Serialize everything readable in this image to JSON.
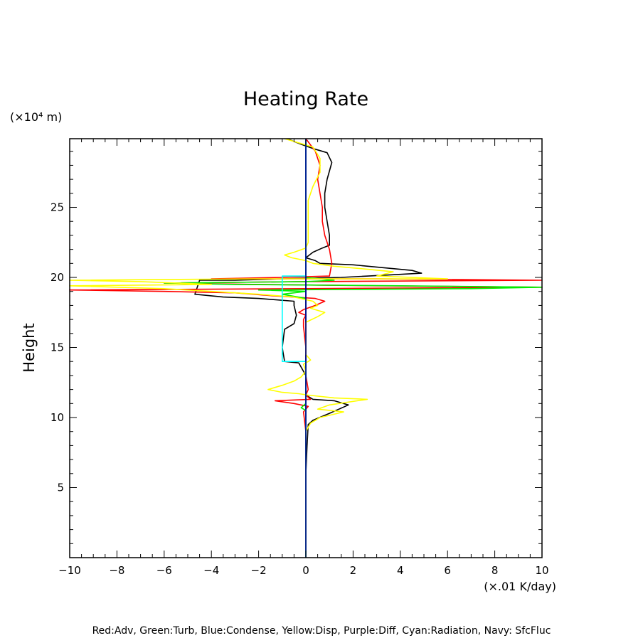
{
  "chart_data": {
    "type": "line",
    "title": "Heating Rate",
    "ylabel": "Height",
    "y_unit": "(×10⁴ m)",
    "x_unit": "(×.01 K/day)",
    "xlim": [
      -10,
      10
    ],
    "ylim": [
      0,
      29.9
    ],
    "x_ticks": [
      -10,
      -8,
      -6,
      -4,
      -2,
      0,
      2,
      4,
      6,
      8,
      10
    ],
    "y_ticks": [
      5,
      10,
      15,
      20,
      25
    ],
    "x_tick_labels": [
      "−10",
      "−8",
      "−6",
      "−4",
      "−2",
      "0",
      "2",
      "4",
      "6",
      "8",
      "10"
    ],
    "y_tick_labels": [
      "5",
      "10",
      "15",
      "20",
      "25"
    ],
    "legend": "Red:Adv, Green:Turb, Blue:Condense, Yellow:Disp, Purple:Diff, Cyan:Radiation, Navy: SfcFluc",
    "legend_position": "bottom",
    "series": [
      {
        "color": "#000000",
        "points": [
          [
            0,
            0
          ],
          [
            0,
            2
          ],
          [
            0,
            4
          ],
          [
            0,
            6
          ],
          [
            0.05,
            8
          ],
          [
            0.1,
            9.5
          ],
          [
            0.3,
            9.8
          ],
          [
            1.0,
            10.3
          ],
          [
            1.8,
            10.9
          ],
          [
            1.2,
            11.2
          ],
          [
            0.3,
            11.3
          ],
          [
            0,
            11.6
          ],
          [
            0,
            13
          ],
          [
            -0.3,
            13.9
          ],
          [
            -0.9,
            14.0
          ],
          [
            -1.0,
            15
          ],
          [
            -0.9,
            16.3
          ],
          [
            -0.5,
            16.7
          ],
          [
            -0.4,
            17.3
          ],
          [
            -0.5,
            18.0
          ],
          [
            -0.5,
            18.3
          ],
          [
            -2.0,
            18.5
          ],
          [
            -3.5,
            18.6
          ],
          [
            -4.7,
            18.8
          ],
          [
            -4.5,
            19.8
          ],
          [
            -3.0,
            19.8
          ],
          [
            -1.0,
            19.9
          ],
          [
            1.5,
            20.0
          ],
          [
            3.8,
            20.2
          ],
          [
            4.9,
            20.3
          ],
          [
            4.5,
            20.5
          ],
          [
            2.0,
            20.9
          ],
          [
            0.6,
            21.0
          ],
          [
            0.4,
            21.2
          ],
          [
            0,
            21.4
          ],
          [
            0.3,
            21.8
          ],
          [
            0.7,
            22.1
          ],
          [
            1.0,
            22.3
          ],
          [
            1.0,
            23
          ],
          [
            0.9,
            24
          ],
          [
            0.8,
            25
          ],
          [
            0.8,
            26
          ],
          [
            0.9,
            27
          ],
          [
            1.1,
            28.2
          ],
          [
            0.9,
            28.9
          ],
          [
            0.3,
            29.2
          ],
          [
            -0.2,
            29.5
          ],
          [
            -0.8,
            29.9
          ]
        ]
      },
      {
        "color": "#ff0000",
        "points": [
          [
            0,
            0
          ],
          [
            0,
            3
          ],
          [
            0,
            6
          ],
          [
            0,
            9
          ],
          [
            -0.1,
            10.4
          ],
          [
            0.1,
            10.8
          ],
          [
            -0.5,
            11.0
          ],
          [
            -1.3,
            11.2
          ],
          [
            0.2,
            11.3
          ],
          [
            0,
            11.6
          ],
          [
            0.1,
            12.0
          ],
          [
            0,
            13
          ],
          [
            0,
            15
          ],
          [
            -0.1,
            16.5
          ],
          [
            -0.1,
            17.0
          ],
          [
            0,
            17.3
          ],
          [
            -0.3,
            17.5
          ],
          [
            -0.1,
            17.7
          ],
          [
            0.4,
            18.0
          ],
          [
            0.8,
            18.3
          ],
          [
            0.4,
            18.5
          ],
          [
            -1.5,
            18.7
          ],
          [
            -3.0,
            18.9
          ],
          [
            -6,
            19.0
          ],
          [
            -10,
            19.1
          ],
          [
            0,
            19.2
          ],
          [
            10,
            19.3
          ],
          [
            3,
            19.4
          ],
          [
            -2,
            19.5
          ],
          [
            -6,
            19.6
          ],
          [
            0,
            19.7
          ],
          [
            10,
            19.8
          ],
          [
            3,
            19.9
          ],
          [
            -4,
            19.9
          ],
          [
            -1,
            20.0
          ],
          [
            1.0,
            20.1
          ],
          [
            1.1,
            21
          ],
          [
            1.0,
            22
          ],
          [
            0.8,
            23
          ],
          [
            0.7,
            24
          ],
          [
            0.7,
            25
          ],
          [
            0.6,
            26
          ],
          [
            0.5,
            27
          ],
          [
            0.6,
            28
          ],
          [
            0.4,
            29
          ],
          [
            0,
            29.9
          ]
        ]
      },
      {
        "color": "#00ee00",
        "points": [
          [
            0,
            0
          ],
          [
            0,
            3
          ],
          [
            0,
            6
          ],
          [
            0,
            9
          ],
          [
            0,
            10.5
          ],
          [
            -0.2,
            10.7
          ],
          [
            0,
            11
          ],
          [
            0,
            17
          ],
          [
            0,
            17.8
          ],
          [
            0,
            18.5
          ],
          [
            -1.0,
            18.8
          ],
          [
            0,
            19.0
          ],
          [
            -2,
            19.1
          ],
          [
            7,
            19.2
          ],
          [
            10,
            19.3
          ],
          [
            4,
            19.4
          ],
          [
            -3,
            19.5
          ],
          [
            -6,
            19.6
          ],
          [
            0,
            19.7
          ],
          [
            1.2,
            19.8
          ],
          [
            0,
            20.0
          ],
          [
            0,
            29.9
          ]
        ]
      },
      {
        "color": "#0000ff",
        "points": [
          [
            0,
            0
          ],
          [
            0,
            3
          ],
          [
            0,
            6
          ],
          [
            0,
            9
          ],
          [
            0,
            12
          ],
          [
            0,
            15
          ],
          [
            0,
            18
          ],
          [
            0,
            21
          ],
          [
            0,
            24
          ],
          [
            0,
            27
          ],
          [
            0,
            29.9
          ]
        ]
      },
      {
        "color": "#ffff00",
        "points": [
          [
            0,
            0
          ],
          [
            0,
            4
          ],
          [
            0,
            7
          ],
          [
            0,
            9
          ],
          [
            0.2,
            9.6
          ],
          [
            0.6,
            10.0
          ],
          [
            1.6,
            10.4
          ],
          [
            0.5,
            10.6
          ],
          [
            1.0,
            10.9
          ],
          [
            2.6,
            11.3
          ],
          [
            1.2,
            11.4
          ],
          [
            0.1,
            11.6
          ],
          [
            -0.3,
            11.7
          ],
          [
            -1.0,
            11.8
          ],
          [
            -1.6,
            12.0
          ],
          [
            -1.0,
            12.3
          ],
          [
            -0.5,
            12.6
          ],
          [
            -0.2,
            12.9
          ],
          [
            0,
            13.3
          ],
          [
            -0.1,
            13.8
          ],
          [
            0.2,
            14.1
          ],
          [
            0,
            14.5
          ],
          [
            0,
            16
          ],
          [
            0,
            16.8
          ],
          [
            0.5,
            17.2
          ],
          [
            0.8,
            17.5
          ],
          [
            0.2,
            17.8
          ],
          [
            0.5,
            18.0
          ],
          [
            0.3,
            18.3
          ],
          [
            -0.5,
            18.6
          ],
          [
            -2.0,
            18.8
          ],
          [
            -4,
            19.0
          ],
          [
            -6,
            19.2
          ],
          [
            -10,
            19.4
          ],
          [
            -4,
            19.5
          ],
          [
            -7,
            19.7
          ],
          [
            -10,
            19.8
          ],
          [
            -2,
            19.9
          ],
          [
            2,
            19.9
          ],
          [
            6,
            19.9
          ],
          [
            3,
            20.1
          ],
          [
            3.7,
            20.4
          ],
          [
            2.5,
            20.6
          ],
          [
            1.2,
            20.8
          ],
          [
            0.3,
            21.0
          ],
          [
            0,
            21.2
          ],
          [
            -0.6,
            21.4
          ],
          [
            -0.9,
            21.6
          ],
          [
            -0.5,
            21.8
          ],
          [
            0,
            22.1
          ],
          [
            0.1,
            22.5
          ],
          [
            0.1,
            23.5
          ],
          [
            0.1,
            24.5
          ],
          [
            0.1,
            25.5
          ],
          [
            0.3,
            26.5
          ],
          [
            0.6,
            27.5
          ],
          [
            0.6,
            28.5
          ],
          [
            0.3,
            29.3
          ],
          [
            -0.5,
            29.7
          ],
          [
            -0.9,
            29.9
          ]
        ]
      },
      {
        "color": "#00ffff",
        "points": [
          [
            0,
            0
          ],
          [
            0,
            13.5
          ],
          [
            0,
            14.0
          ],
          [
            -1.0,
            14.0
          ],
          [
            -1.0,
            17
          ],
          [
            -1.0,
            19.0
          ],
          [
            -1.0,
            20.1
          ],
          [
            0,
            20.1
          ],
          [
            0,
            29.9
          ]
        ]
      },
      {
        "color": "#000080",
        "points": [
          [
            0,
            0
          ],
          [
            0,
            29.9
          ]
        ]
      }
    ]
  }
}
